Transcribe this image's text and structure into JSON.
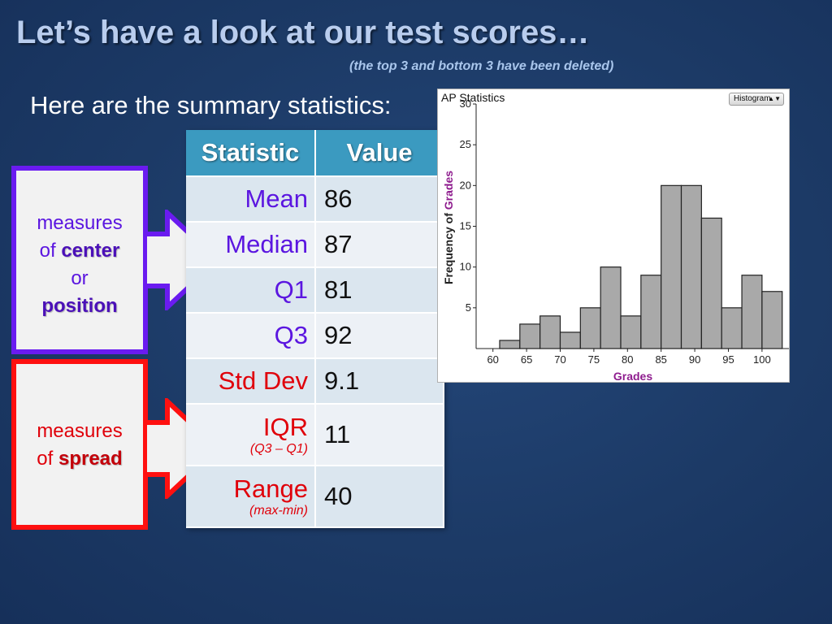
{
  "title": "Let’s have a look at our test scores…",
  "subtitle": "(the top 3 and bottom 3 have been deleted)",
  "intro": "Here are the summary statistics:",
  "center_box": {
    "line1": "measures",
    "line2_prefix": "of ",
    "line2_bold": "center",
    "line3": "or",
    "line4_bold": "position"
  },
  "spread_box": {
    "line1": "measures",
    "line2_prefix": "of ",
    "line2_bold": "spread"
  },
  "colors": {
    "center_accent": "#6a1bf0",
    "spread_accent": "#ff1010",
    "header_blue": "#3b9ac0",
    "bar_fill": "#a9a9a9"
  },
  "table": {
    "headers": [
      "Statistic",
      "Value"
    ],
    "rows": [
      {
        "label": "Mean",
        "value": "86",
        "note": ""
      },
      {
        "label": "Median",
        "value": "87",
        "note": ""
      },
      {
        "label": "Q1",
        "value": "81",
        "note": ""
      },
      {
        "label": "Q3",
        "value": "92",
        "note": ""
      },
      {
        "label": "Std Dev",
        "value": "9.1",
        "note": ""
      },
      {
        "label": "IQR",
        "value": "11",
        "note": "(Q3 – Q1)"
      },
      {
        "label": "Range",
        "value": "40",
        "note": "(max-min)"
      }
    ]
  },
  "chart_panel": {
    "app_title": "AP Statistics",
    "view_button": "Histogram"
  },
  "chart_data": {
    "type": "bar",
    "subtype": "histogram",
    "xlabel": "Grades",
    "ylabel": "Frequency of Grades",
    "bin_width": 3,
    "bin_starts": [
      61,
      64,
      67,
      70,
      73,
      76,
      79,
      82,
      85,
      88,
      91,
      94,
      97,
      100
    ],
    "values": [
      1,
      3,
      4,
      2,
      5,
      10,
      4,
      9,
      20,
      20,
      16,
      5,
      9,
      7
    ],
    "xlim": [
      57.5,
      104
    ],
    "ylim": [
      0,
      30
    ],
    "x_ticks": [
      60,
      65,
      70,
      75,
      80,
      85,
      90,
      95,
      100
    ],
    "y_ticks": [
      5,
      10,
      15,
      20,
      25,
      30
    ],
    "grid": false
  }
}
